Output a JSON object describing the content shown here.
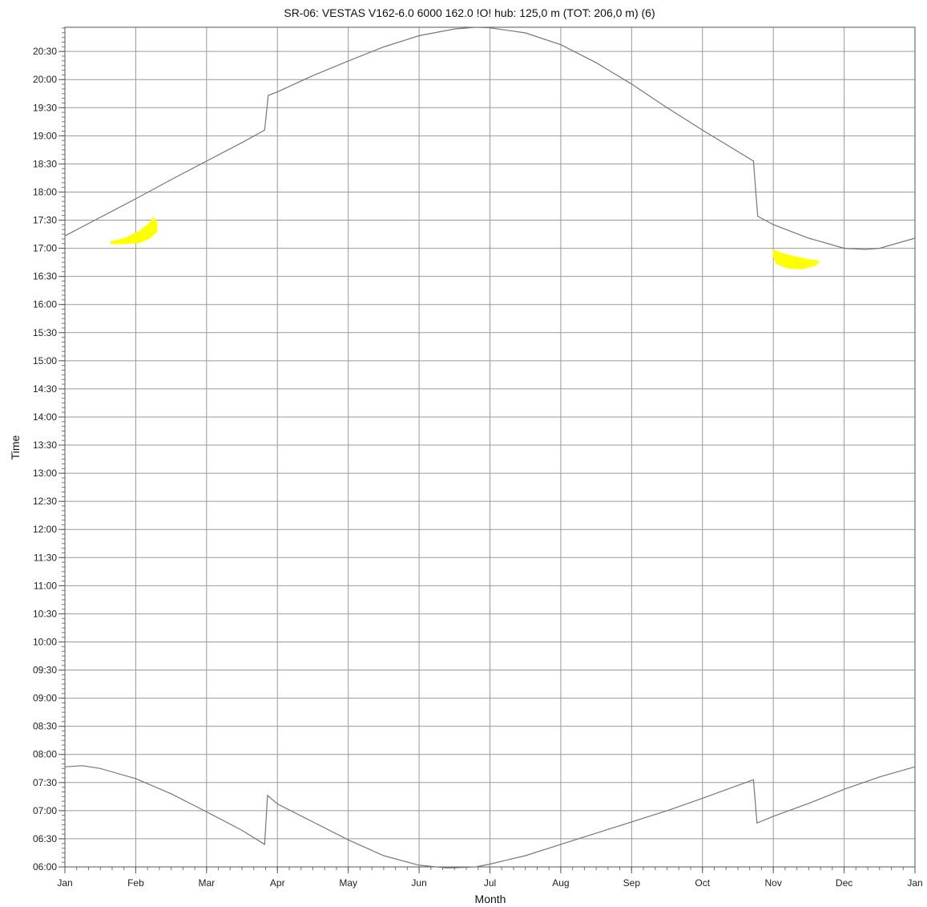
{
  "chart_data": {
    "type": "line",
    "title": "SR-06: VESTAS V162-6.0 6000 162.0 !O! hub: 125,0 m (TOT: 206,0 m) (6)",
    "xlabel": "Month",
    "ylabel": "Time",
    "x_ticks": [
      "Jan",
      "Feb",
      "Mar",
      "Apr",
      "May",
      "Jun",
      "Jul",
      "Aug",
      "Sep",
      "Oct",
      "Nov",
      "Dec",
      "Jan"
    ],
    "y_ticks": [
      "06:00",
      "06:30",
      "07:00",
      "07:30",
      "08:00",
      "08:30",
      "09:00",
      "09:30",
      "10:00",
      "10:30",
      "11:00",
      "11:30",
      "12:00",
      "12:30",
      "13:00",
      "13:30",
      "14:00",
      "14:30",
      "15:00",
      "15:30",
      "16:00",
      "16:30",
      "17:00",
      "17:30",
      "18:00",
      "18:30",
      "19:00",
      "19:30",
      "20:00",
      "20:30"
    ],
    "xlim_months": [
      0,
      12
    ],
    "ylim_hours": [
      6.0,
      20.93
    ],
    "grid": true,
    "series": [
      {
        "color": "#777777",
        "points": [
          [
            0.0,
            17.22
          ],
          [
            0.5,
            17.55
          ],
          [
            1.0,
            17.88
          ],
          [
            1.5,
            18.22
          ],
          [
            2.0,
            18.55
          ],
          [
            2.5,
            18.88
          ],
          [
            2.82,
            19.1
          ],
          [
            2.87,
            19.72
          ],
          [
            3.0,
            19.78
          ],
          [
            3.5,
            20.07
          ],
          [
            4.0,
            20.33
          ],
          [
            4.5,
            20.58
          ],
          [
            5.0,
            20.78
          ],
          [
            5.5,
            20.9
          ],
          [
            5.8,
            20.93
          ],
          [
            6.0,
            20.92
          ],
          [
            6.5,
            20.83
          ],
          [
            7.0,
            20.62
          ],
          [
            7.5,
            20.3
          ],
          [
            8.0,
            19.92
          ],
          [
            8.5,
            19.5
          ],
          [
            9.0,
            19.1
          ],
          [
            9.5,
            18.72
          ],
          [
            9.72,
            18.55
          ],
          [
            9.78,
            17.57
          ],
          [
            10.0,
            17.42
          ],
          [
            10.5,
            17.18
          ],
          [
            11.0,
            17.0
          ],
          [
            11.3,
            16.98
          ],
          [
            11.5,
            17.0
          ],
          [
            12.0,
            17.18
          ]
        ]
      },
      {
        "color": "#777777",
        "points": [
          [
            0.0,
            7.78
          ],
          [
            0.25,
            7.8
          ],
          [
            0.5,
            7.75
          ],
          [
            1.0,
            7.57
          ],
          [
            1.5,
            7.3
          ],
          [
            2.0,
            6.98
          ],
          [
            2.5,
            6.65
          ],
          [
            2.82,
            6.4
          ],
          [
            2.86,
            7.27
          ],
          [
            3.0,
            7.12
          ],
          [
            3.5,
            6.8
          ],
          [
            4.0,
            6.48
          ],
          [
            4.5,
            6.2
          ],
          [
            5.0,
            6.03
          ],
          [
            5.4,
            5.98
          ],
          [
            5.8,
            6.0
          ],
          [
            6.0,
            6.05
          ],
          [
            6.5,
            6.2
          ],
          [
            7.0,
            6.4
          ],
          [
            7.5,
            6.6
          ],
          [
            8.0,
            6.8
          ],
          [
            8.5,
            7.0
          ],
          [
            9.0,
            7.22
          ],
          [
            9.5,
            7.45
          ],
          [
            9.72,
            7.55
          ],
          [
            9.77,
            6.78
          ],
          [
            10.0,
            6.9
          ],
          [
            10.5,
            7.13
          ],
          [
            11.0,
            7.38
          ],
          [
            11.5,
            7.6
          ],
          [
            12.0,
            7.78
          ]
        ]
      }
    ],
    "shadow_regions": [
      {
        "color": "#ffff00",
        "points": [
          [
            0.65,
            17.12
          ],
          [
            0.85,
            17.18
          ],
          [
            1.05,
            17.3
          ],
          [
            1.2,
            17.45
          ],
          [
            1.25,
            17.55
          ],
          [
            1.3,
            17.45
          ],
          [
            1.3,
            17.3
          ],
          [
            1.2,
            17.18
          ],
          [
            1.05,
            17.1
          ],
          [
            0.85,
            17.08
          ],
          [
            0.65,
            17.08
          ]
        ]
      },
      {
        "color": "#ffff00",
        "points": [
          [
            10.0,
            16.97
          ],
          [
            10.1,
            16.92
          ],
          [
            10.3,
            16.85
          ],
          [
            10.5,
            16.8
          ],
          [
            10.65,
            16.77
          ],
          [
            10.6,
            16.7
          ],
          [
            10.4,
            16.63
          ],
          [
            10.2,
            16.65
          ],
          [
            10.05,
            16.72
          ],
          [
            10.0,
            16.85
          ]
        ]
      }
    ]
  }
}
